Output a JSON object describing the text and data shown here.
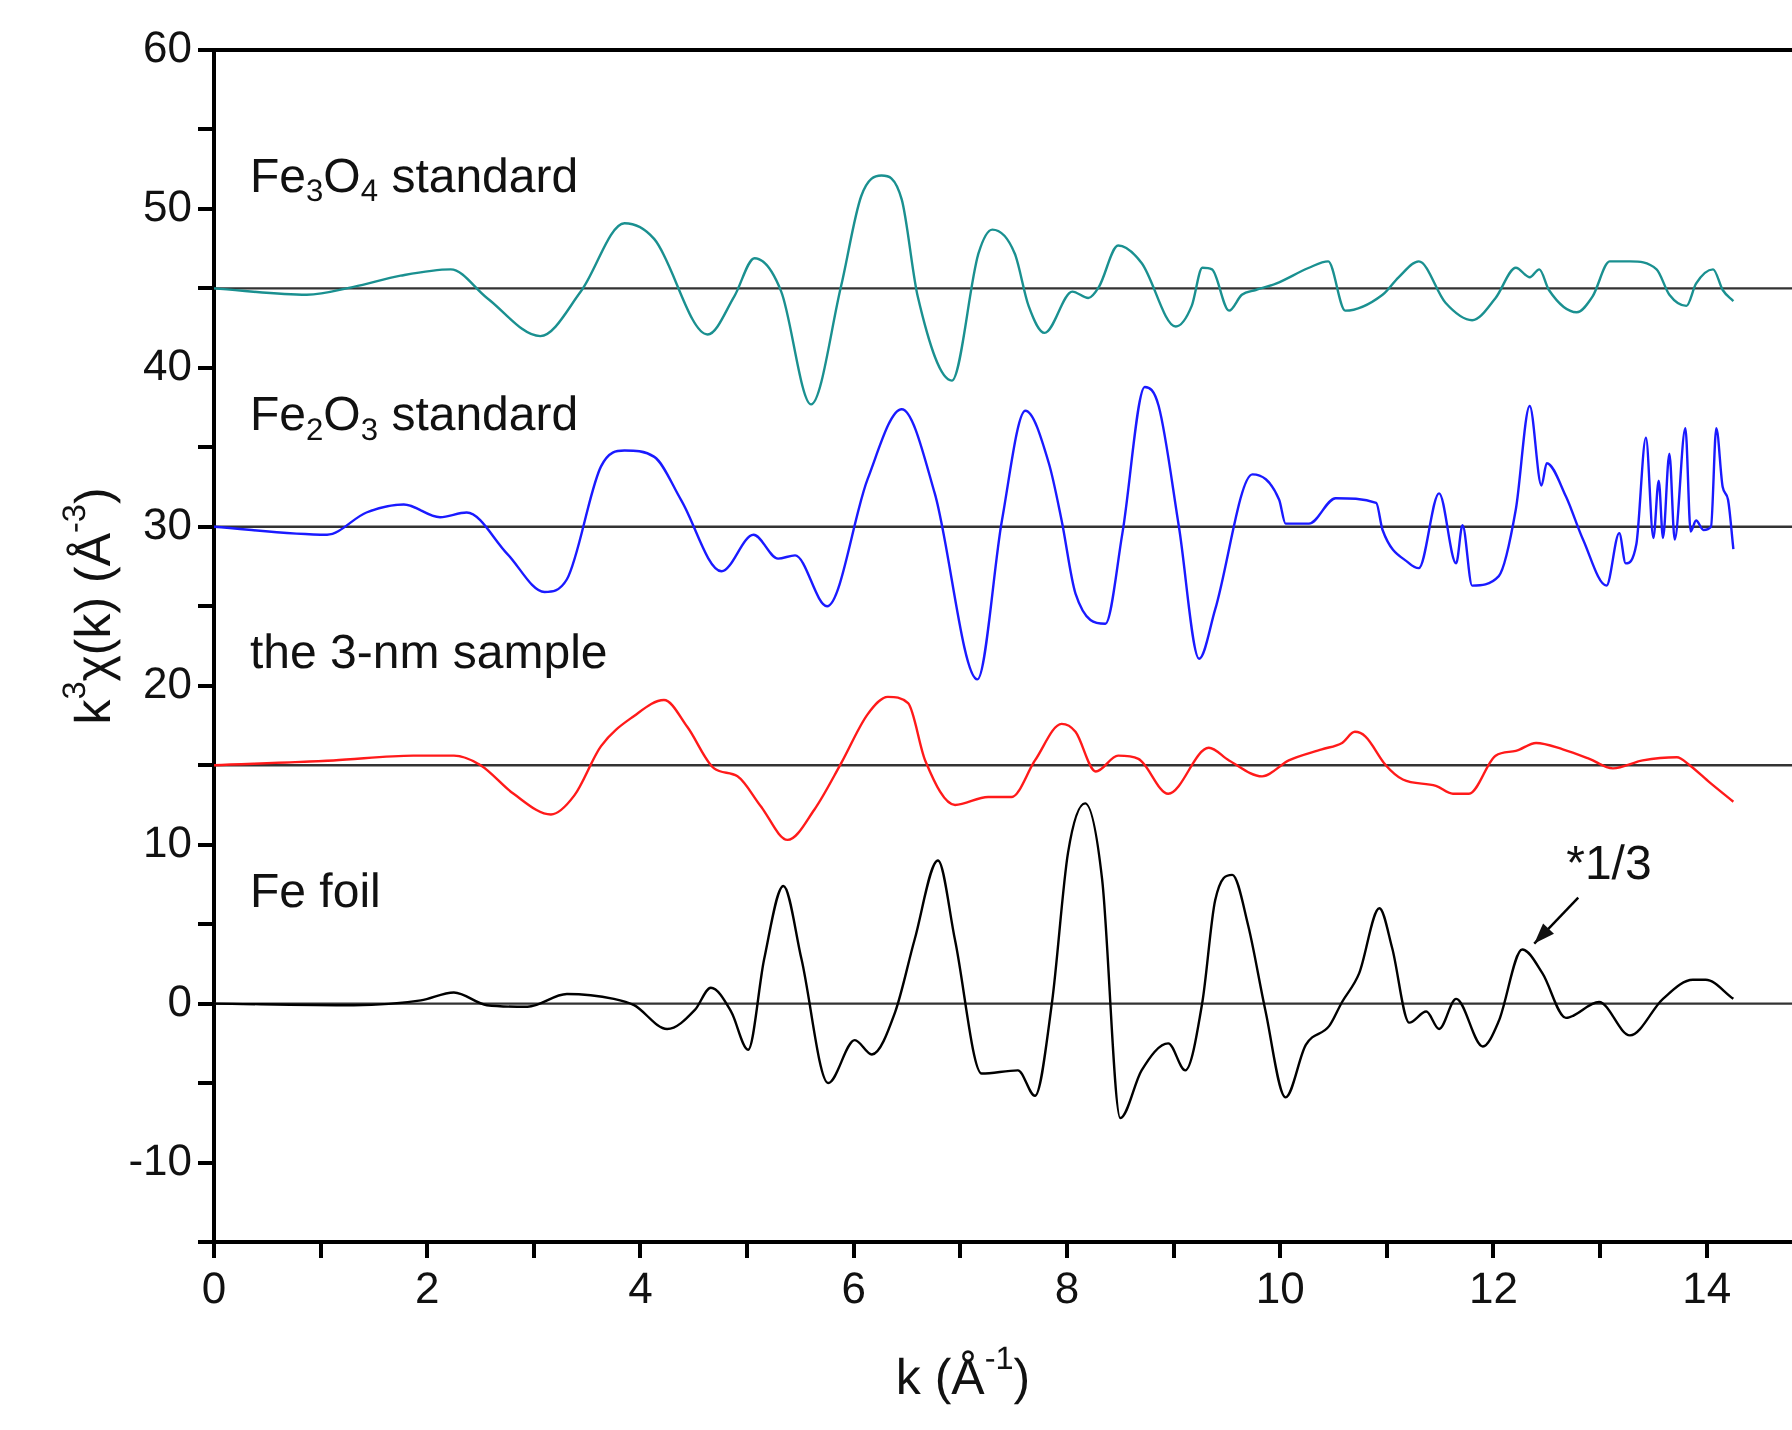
{
  "chart_data": {
    "type": "line",
    "xlabel": "k (Å$^{-1}$)",
    "ylabel": "k$^{3}$χ(k) (Å$^{-3}$)",
    "xlim": [
      0,
      14.8
    ],
    "ylim": [
      -15,
      60
    ],
    "xticks": [
      0,
      {
        "value": 1,
        "label": null
      },
      2,
      {
        "value": 3,
        "label": null
      },
      4,
      {
        "value": 5,
        "label": null
      },
      6,
      {
        "value": 7,
        "label": null
      },
      8,
      {
        "value": 9,
        "label": null
      },
      10,
      {
        "value": 11,
        "label": null
      },
      12,
      {
        "value": 13,
        "label": null
      },
      14
    ],
    "yticks": [
      {
        "value": -15,
        "label": null
      },
      -10,
      {
        "value": -5,
        "label": null
      },
      0,
      {
        "value": 5,
        "label": null
      },
      10,
      {
        "value": 15,
        "label": null
      },
      20,
      {
        "value": 25,
        "label": null
      },
      30,
      {
        "value": 35,
        "label": null
      },
      40,
      {
        "value": 45,
        "label": null
      },
      50,
      {
        "value": 55,
        "label": null
      },
      60
    ],
    "grid": false,
    "legend": false,
    "marker": "none",
    "line_style": "solid",
    "ref_lines": [
      {
        "axis": "y",
        "value": 45
      },
      {
        "axis": "y",
        "value": 30
      },
      {
        "axis": "y",
        "value": 15
      },
      {
        "axis": "y",
        "value": 0
      }
    ],
    "annotations": [
      {
        "text": "*1/3",
        "x": 12.27,
        "y": 3.4
      }
    ],
    "series": [
      {
        "name": "Fe$_{3}$O$_{4}$ standard",
        "color": "#1a9090",
        "x": [
          0,
          0.87,
          1.31,
          1.75,
          2.22,
          2.56,
          3.06,
          3.44,
          3.85,
          4.13,
          4.63,
          4.88,
          5.07,
          5.32,
          5.6,
          5.88,
          6.07,
          6.26,
          6.45,
          6.6,
          6.92,
          7.17,
          7.3,
          7.51,
          7.64,
          7.79,
          8.05,
          8.2,
          8.3,
          8.48,
          8.7,
          9.02,
          9.17,
          9.27,
          9.36,
          9.52,
          9.64,
          9.77,
          9.96,
          10.27,
          10.45,
          10.61,
          10.96,
          11.11,
          11.3,
          11.55,
          11.8,
          12.02,
          12.21,
          12.34,
          12.43,
          12.52,
          12.78,
          12.93,
          13.09,
          13.28,
          13.53,
          13.65,
          13.81,
          13.9,
          14.06,
          14.15,
          14.25
        ],
        "values": [
          45,
          44.6,
          45.1,
          45.8,
          46.2,
          44.4,
          42,
          44.8,
          49.1,
          48.1,
          42.1,
          44.5,
          46.9,
          44.8,
          37.7,
          45.1,
          50.8,
          52.1,
          50.6,
          44.5,
          39.2,
          47.2,
          48.7,
          47.2,
          43.9,
          42.2,
          44.8,
          44.4,
          45.1,
          47.7,
          46.6,
          42.6,
          43.9,
          46.3,
          46.2,
          43.6,
          44.6,
          44.9,
          45.3,
          46.3,
          46.7,
          43.6,
          44.6,
          45.7,
          46.7,
          44.1,
          43,
          44.4,
          46.3,
          45.7,
          46.2,
          44.9,
          43.5,
          44.5,
          46.7,
          46.7,
          46.2,
          44.6,
          43.9,
          45.3,
          46.2,
          44.9,
          44.2
        ]
      },
      {
        "name": "Fe$_{2}$O$_{3}$ standard",
        "color": "#1a1aff",
        "x": [
          0,
          1.06,
          1.43,
          1.78,
          2.12,
          2.37,
          2.75,
          3.1,
          3.31,
          3.63,
          3.85,
          4.13,
          4.38,
          4.76,
          5.06,
          5.29,
          5.45,
          5.75,
          6.13,
          6.45,
          6.76,
          7.16,
          7.39,
          7.61,
          7.83,
          7.95,
          8.08,
          8.36,
          8.52,
          8.73,
          8.86,
          9.05,
          9.24,
          9.39,
          9.74,
          9.99,
          10.05,
          10.27,
          10.52,
          10.9,
          10.96,
          11.21,
          11.3,
          11.49,
          11.65,
          11.71,
          11.8,
          12.05,
          12.21,
          12.34,
          12.45,
          12.5,
          12.68,
          12.84,
          13.06,
          13.18,
          13.24,
          13.34,
          13.43,
          13.5,
          13.55,
          13.59,
          13.65,
          13.7,
          13.8,
          13.85,
          13.9,
          13.97,
          14.04,
          14.09,
          14.15,
          14.2,
          14.25
        ],
        "values": [
          30,
          29.5,
          30.9,
          31.4,
          30.6,
          30.9,
          28.3,
          25.9,
          26.7,
          33.8,
          34.8,
          34.4,
          31.7,
          27.2,
          29.5,
          28,
          28.2,
          25,
          33,
          37.4,
          32.1,
          20.4,
          30.4,
          37.3,
          34,
          30.4,
          25.8,
          23.9,
          29.6,
          38.8,
          37.6,
          30,
          21.7,
          24.8,
          33.3,
          31.7,
          30.2,
          30.2,
          31.8,
          31.5,
          29.8,
          27.7,
          27.4,
          32.1,
          27.7,
          30.1,
          26.3,
          26.9,
          31.1,
          37.6,
          32.6,
          34,
          31.9,
          29.2,
          26.3,
          29.6,
          27.7,
          28.9,
          35.6,
          29.3,
          32.9,
          29.3,
          34.6,
          29.2,
          36.2,
          29.7,
          30.4,
          29.8,
          30,
          36.2,
          32.5,
          31.7,
          28.6
        ]
      },
      {
        "name": "the 3-nm sample",
        "color": "#ff1a1a",
        "x": [
          0,
          1.12,
          1.87,
          2.25,
          2.5,
          2.81,
          3.16,
          3.38,
          3.63,
          3.94,
          4.22,
          4.44,
          4.69,
          4.91,
          5.13,
          5.38,
          5.63,
          5.88,
          6.13,
          6.32,
          6.51,
          6.67,
          6.95,
          7.26,
          7.48,
          7.7,
          7.95,
          8.08,
          8.27,
          8.48,
          8.67,
          8.95,
          9.33,
          9.52,
          9.83,
          10.08,
          10.39,
          10.58,
          10.7,
          10.8,
          10.99,
          11.15,
          11.46,
          11.62,
          11.77,
          12.02,
          12.21,
          12.4,
          12.65,
          12.9,
          13.12,
          13.4,
          13.72,
          13.84,
          14.03,
          14.25
        ],
        "values": [
          15,
          15.3,
          15.6,
          15.6,
          15,
          13.2,
          11.9,
          13.1,
          16.2,
          18.1,
          19.1,
          17.4,
          14.8,
          14.3,
          12.4,
          10.3,
          12.2,
          15.1,
          18.2,
          19.3,
          18.9,
          15.3,
          12.5,
          13,
          13,
          15.3,
          17.6,
          17.1,
          14.6,
          15.6,
          15.4,
          13.2,
          16.1,
          15.3,
          14.3,
          15.3,
          16,
          16.4,
          17.1,
          16.8,
          15,
          14.1,
          13.7,
          13.2,
          13.2,
          15.6,
          15.9,
          16.4,
          16,
          15.4,
          14.8,
          15.3,
          15.5,
          15,
          13.9,
          12.7
        ]
      },
      {
        "name": "Fe foil",
        "color": "#000000",
        "x": [
          0,
          1.31,
          1.94,
          2.25,
          2.56,
          2.94,
          3.31,
          3.75,
          3.94,
          4.25,
          4.51,
          4.66,
          4.85,
          5.01,
          5.16,
          5.34,
          5.51,
          5.76,
          6.01,
          6.17,
          6.39,
          6.57,
          6.79,
          6.95,
          7.2,
          7.54,
          7.7,
          7.86,
          8.01,
          8.17,
          8.33,
          8.5,
          8.7,
          8.95,
          9.11,
          9.27,
          9.39,
          9.55,
          9.7,
          9.86,
          10.05,
          10.24,
          10.46,
          10.58,
          10.74,
          10.93,
          11.05,
          11.21,
          11.37,
          11.49,
          11.65,
          11.9,
          12.05,
          12.27,
          12.46,
          12.68,
          12.99,
          13.28,
          13.59,
          13.87,
          13.99,
          14.25
        ],
        "values": [
          0,
          -0.1,
          0.2,
          0.7,
          -0.1,
          -0.2,
          0.6,
          0.3,
          -0.1,
          -1.6,
          -0.4,
          1,
          -0.5,
          -2.9,
          2.8,
          7.4,
          2.8,
          -5,
          -2.3,
          -3.2,
          -0.5,
          4,
          9,
          4,
          -4.4,
          -4.2,
          -5.8,
          0.1,
          9.5,
          12.6,
          7.8,
          -7.2,
          -4.2,
          -2.5,
          -4.2,
          0.1,
          6.5,
          8.1,
          4.9,
          -0.4,
          -5.9,
          -2.6,
          -1.4,
          0.1,
          1.9,
          6,
          3.5,
          -1.2,
          -0.5,
          -1.6,
          0.3,
          -2.7,
          -1.1,
          3.4,
          1.9,
          -0.9,
          0.1,
          -2,
          0.3,
          1.5,
          1.5,
          0.3
        ]
      }
    ]
  }
}
